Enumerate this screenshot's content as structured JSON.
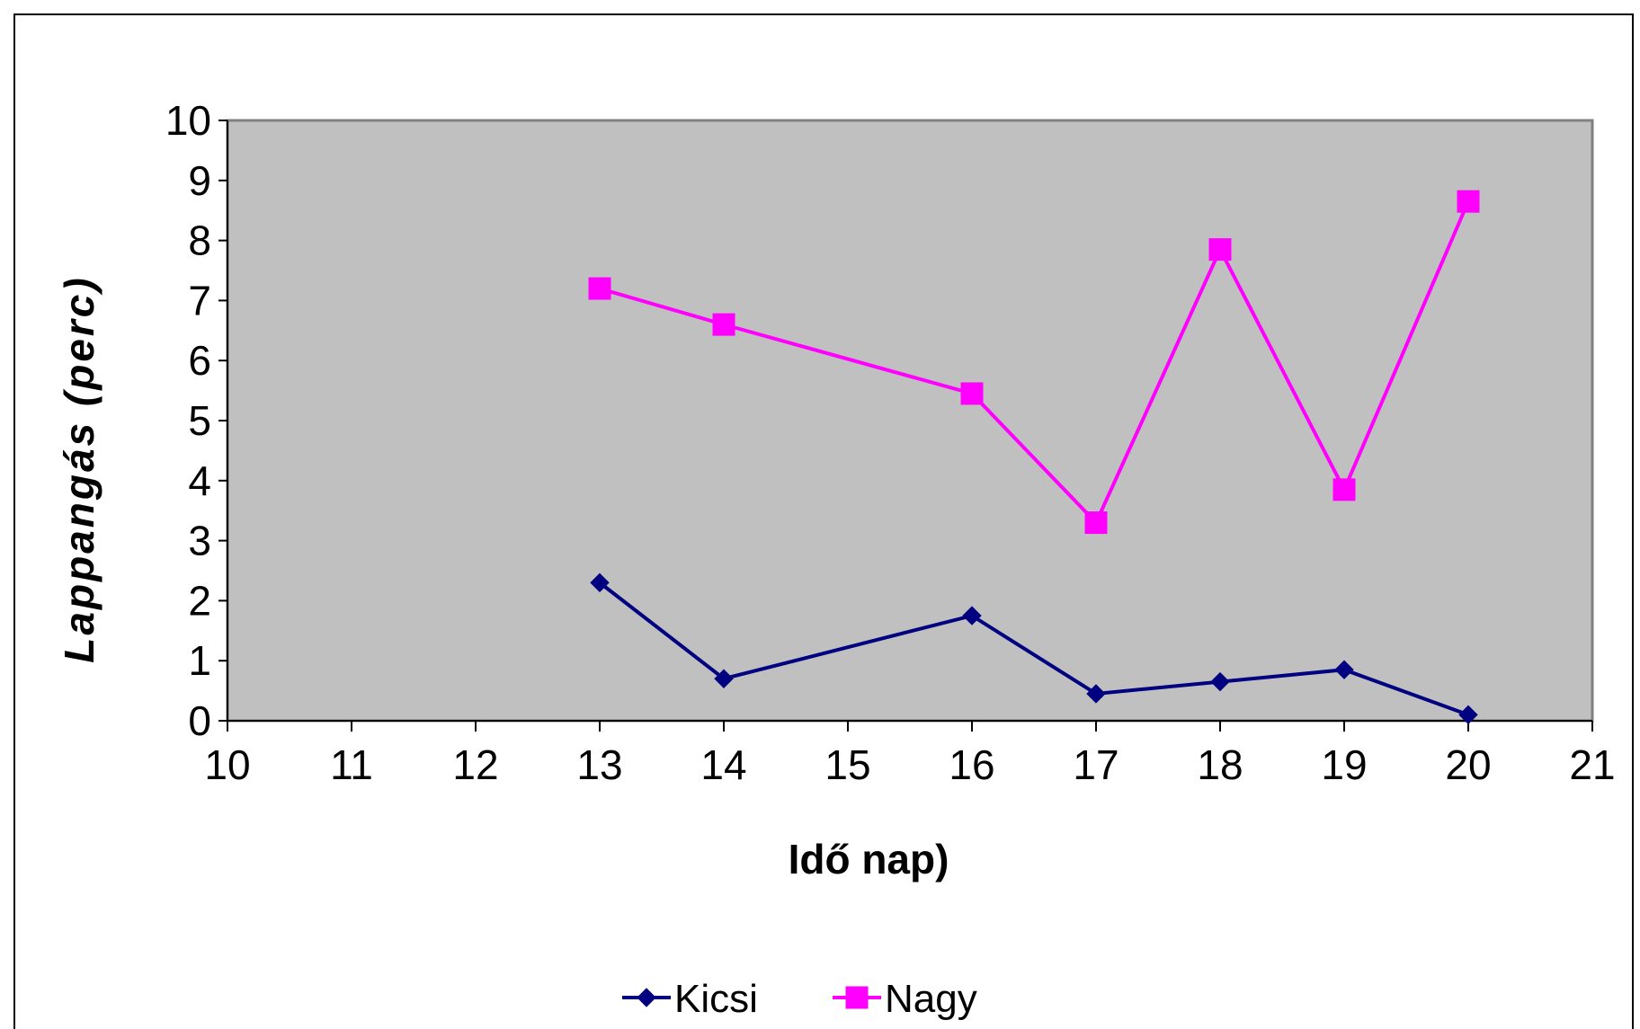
{
  "chart_data": {
    "type": "line",
    "title": "",
    "xlabel": "Idő nap)",
    "ylabel": "Lappangás (perc)",
    "x_tick_labels": [
      "10",
      "11",
      "12",
      "13",
      "14",
      "15",
      "16",
      "17",
      "18",
      "19",
      "20",
      "21"
    ],
    "y_tick_labels": [
      "0",
      "1",
      "2",
      "3",
      "4",
      "5",
      "6",
      "7",
      "8",
      "9",
      "10"
    ],
    "ylim": [
      0,
      10
    ],
    "grid": false,
    "legend_position": "bottom",
    "plot_background": "#c0c0c0",
    "series": [
      {
        "name": "Kicsi",
        "color": "#000080",
        "marker": "diamond",
        "x": [
          "13",
          "14",
          "16",
          "17",
          "18",
          "19",
          "20"
        ],
        "values": [
          2.3,
          0.7,
          1.75,
          0.45,
          0.65,
          0.85,
          0.1
        ]
      },
      {
        "name": "Nagy",
        "color": "#ff00ff",
        "marker": "square",
        "x": [
          "13",
          "14",
          "16",
          "17",
          "18",
          "19",
          "20"
        ],
        "values": [
          7.2,
          6.6,
          5.45,
          3.3,
          7.85,
          3.85,
          8.65
        ]
      }
    ]
  }
}
